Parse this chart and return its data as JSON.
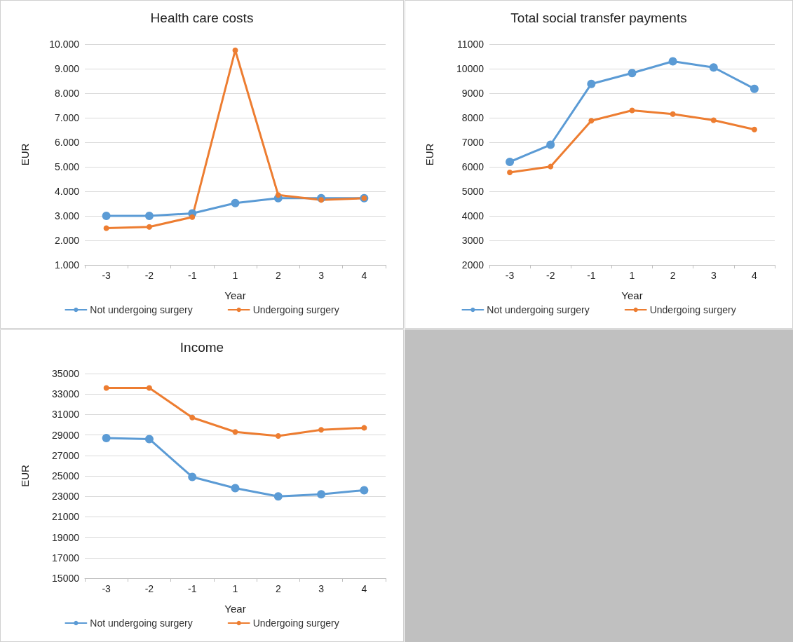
{
  "chart_data": [
    {
      "type": "line",
      "title": "Health care costs",
      "xlabel": "Year",
      "ylabel": "EUR",
      "categories": [
        "-3",
        "-2",
        "-1",
        "1",
        "2",
        "3",
        "4"
      ],
      "series": [
        {
          "name": "Not undergoing surgery",
          "color": "#5b9bd5",
          "values": [
            3000,
            3000,
            3100,
            3520,
            3720,
            3720,
            3720
          ]
        },
        {
          "name": "Undergoing surgery",
          "color": "#ed7d31",
          "values": [
            2500,
            2550,
            2950,
            9750,
            3850,
            3650,
            3720
          ]
        }
      ],
      "ylim": [
        1000,
        10000
      ],
      "yticks": [
        {
          "value": 1000,
          "label": "1.000"
        },
        {
          "value": 2000,
          "label": "2.000"
        },
        {
          "value": 3000,
          "label": "3.000"
        },
        {
          "value": 4000,
          "label": "4.000"
        },
        {
          "value": 5000,
          "label": "5.000"
        },
        {
          "value": 6000,
          "label": "6.000"
        },
        {
          "value": 7000,
          "label": "7.000"
        },
        {
          "value": 8000,
          "label": "8.000"
        },
        {
          "value": 9000,
          "label": "9.000"
        },
        {
          "value": 10000,
          "label": "10.000"
        }
      ],
      "grid": "y",
      "legend": "bottom",
      "marker": "circle",
      "line_style": "solid"
    },
    {
      "type": "line",
      "title": "Total social transfer payments",
      "xlabel": "Year",
      "ylabel": "EUR",
      "categories": [
        "-3",
        "-2",
        "-1",
        "1",
        "2",
        "3",
        "4"
      ],
      "series": [
        {
          "name": "Not undergoing surgery",
          "color": "#5b9bd5",
          "values": [
            6200,
            6900,
            9380,
            9820,
            10300,
            10050,
            9180
          ]
        },
        {
          "name": "Undergoing surgery",
          "color": "#ed7d31",
          "values": [
            5770,
            6010,
            7880,
            8300,
            8150,
            7900,
            7520
          ]
        }
      ],
      "ylim": [
        2000,
        11000
      ],
      "yticks": [
        2000,
        3000,
        4000,
        5000,
        6000,
        7000,
        8000,
        9000,
        10000,
        11000
      ],
      "grid": "y",
      "legend": "bottom",
      "marker": "circle",
      "line_style": "solid"
    },
    {
      "type": "line",
      "title": "Income",
      "xlabel": "Year",
      "ylabel": "EUR",
      "categories": [
        "-3",
        "-2",
        "-1",
        "1",
        "2",
        "3",
        "4"
      ],
      "series": [
        {
          "name": "Not undergoing surgery",
          "color": "#5b9bd5",
          "values": [
            28700,
            28600,
            24900,
            23800,
            23000,
            23200,
            23600
          ]
        },
        {
          "name": "Undergoing surgery",
          "color": "#ed7d31",
          "values": [
            33600,
            33600,
            30700,
            29300,
            28900,
            29500,
            29700
          ]
        }
      ],
      "ylim": [
        15000,
        35000
      ],
      "yticks": [
        15000,
        17000,
        19000,
        21000,
        23000,
        25000,
        27000,
        29000,
        31000,
        33000,
        35000
      ],
      "grid": "y",
      "legend": "bottom",
      "marker": "circle",
      "line_style": "solid"
    }
  ]
}
